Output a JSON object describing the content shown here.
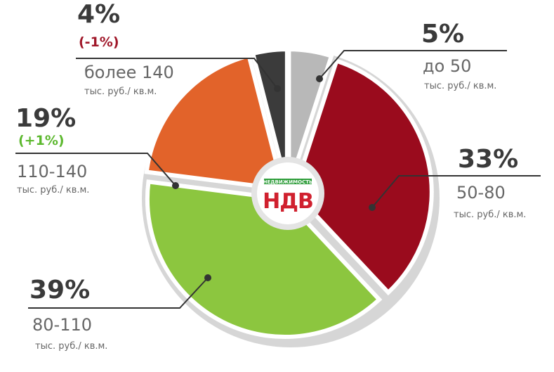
{
  "chart_data": {
    "type": "pie",
    "categories": [
      "до 50",
      "50-80",
      "80-110",
      "110-140",
      "более 140"
    ],
    "values": [
      5,
      33,
      39,
      19,
      4
    ],
    "value_labels": [
      "5%",
      "33%",
      "39%",
      "19%",
      "4%"
    ],
    "changes": [
      null,
      null,
      null,
      "(+1%)",
      "(-1%)"
    ],
    "change_colors": [
      null,
      null,
      null,
      "#5cb82e",
      "#a0182a"
    ],
    "unit": "тыс. руб./ кв.м.",
    "colors": [
      "#b8b8b8",
      "#9a0b1d",
      "#8cc63f",
      "#e2632a",
      "#3b3b3b"
    ],
    "logo": {
      "caption": "НЕДВИЖИМОСТЬ",
      "name": "НДВ"
    }
  }
}
